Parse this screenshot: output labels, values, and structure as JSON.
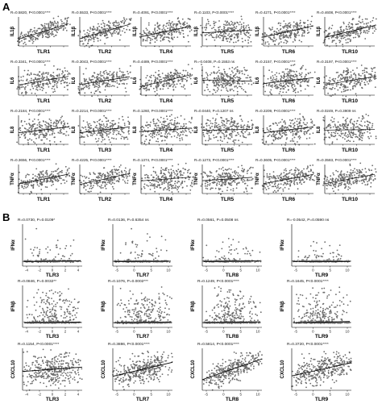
{
  "panels": [
    {
      "letter": "A",
      "rows": [
        {
          "y_label": "IL1β",
          "cells": [
            {
              "x_label": "TLR1",
              "stat": "R=0.5820, P<0.0001****",
              "r": 0.58
            },
            {
              "x_label": "TLR2",
              "stat": "R=0.5533, P<0.0001****",
              "r": 0.55
            },
            {
              "x_label": "TLR4",
              "stat": "R=0.4091, P<0.0001****",
              "r": 0.41
            },
            {
              "x_label": "TLR5",
              "stat": "R=0.1103, P<0.0001****",
              "r": 0.11
            },
            {
              "x_label": "TLR6",
              "stat": "R=0.4271, P<0.0001****",
              "r": 0.43
            },
            {
              "x_label": "TLR10",
              "stat": "R=0.4608, P<0.0001****",
              "r": 0.46
            }
          ]
        },
        {
          "y_label": "IL6",
          "cells": [
            {
              "x_label": "TLR1",
              "stat": "R=0.3341, P<0.0001****",
              "r": 0.33
            },
            {
              "x_label": "TLR2",
              "stat": "R=0.3043, P<0.0001****",
              "r": 0.3
            },
            {
              "x_label": "TLR4",
              "stat": "R=0.4489, P<0.0001****",
              "r": 0.45
            },
            {
              "x_label": "TLR5",
              "stat": "R=-0.0408, P=0.1553 ns",
              "r": -0.04
            },
            {
              "x_label": "TLR6",
              "stat": "R=0.2157, P<0.0001****",
              "r": 0.22
            },
            {
              "x_label": "TLR10",
              "stat": "R=0.3197, P<0.0001****",
              "r": 0.32
            }
          ]
        },
        {
          "y_label": "IL8",
          "cells": [
            {
              "x_label": "TLR1",
              "stat": "R=0.2184, P<0.0001****",
              "r": 0.22
            },
            {
              "x_label": "TLR3",
              "stat": "R=0.2214, P<0.0001****",
              "r": 0.22
            },
            {
              "x_label": "TLR4",
              "stat": "R=0.1260, P<0.0001****",
              "r": 0.13
            },
            {
              "x_label": "TLR5",
              "stat": "R=0.0440, P=0.1207 ns",
              "r": 0.04
            },
            {
              "x_label": "TLR6",
              "stat": "R=0.2209, P<0.0001****",
              "r": 0.22
            },
            {
              "x_label": "TLR10",
              "stat": "R=0.0249, P=0.3909 ns",
              "r": 0.02
            }
          ]
        },
        {
          "y_label": "TNFα",
          "cells": [
            {
              "x_label": "TLR1",
              "stat": "R=0.3656, P<0.0001****",
              "r": 0.37
            },
            {
              "x_label": "TLR2",
              "stat": "R=0.4225, P<0.0001****",
              "r": 0.42
            },
            {
              "x_label": "TLR4",
              "stat": "R=0.1374, P<0.0001****",
              "r": 0.14
            },
            {
              "x_label": "TLR5",
              "stat": "R=0.1273, P<0.0001****",
              "r": 0.13
            },
            {
              "x_label": "TLR6",
              "stat": "R=0.3605, P<0.0001****",
              "r": 0.36
            },
            {
              "x_label": "TLR10",
              "stat": "R=0.3583, P<0.0001****",
              "r": 0.36
            }
          ]
        }
      ]
    },
    {
      "letter": "B",
      "rows": [
        {
          "y_label": "IFNα",
          "cells": [
            {
              "x_label": "TLR3",
              "stat": "R=0.0730, P=0.0109*",
              "r": 0.07,
              "x_ticks": [
                "-4",
                "-2",
                "0",
                "2",
                "4"
              ]
            },
            {
              "x_label": "TLR7",
              "stat": "R=0.0136, P=0.6354 ns",
              "r": 0.01,
              "x_ticks": [
                "-5",
                "0",
                "5",
                "10"
              ]
            },
            {
              "x_label": "TLR8",
              "stat": "R=0.0561, P=0.0508 ns",
              "r": 0.06,
              "x_ticks": [
                "-5",
                "0",
                "5",
                "10"
              ]
            },
            {
              "x_label": "TLR9",
              "stat": "R=-0.0542, P=0.0590 ns",
              "r": -0.05,
              "x_ticks": [
                "-5",
                "0",
                "5",
                "10"
              ]
            }
          ]
        },
        {
          "y_label": "IFNβ",
          "cells": [
            {
              "x_label": "TLR3",
              "stat": "R=0.0846, P=0.0032**",
              "r": 0.08,
              "x_ticks": [
                "-4",
                "-2",
                "0",
                "2",
                "4"
              ]
            },
            {
              "x_label": "TLR7",
              "stat": "R=0.1076, P=0.0002***",
              "r": 0.11,
              "x_ticks": [
                "-5",
                "0",
                "5",
                "10"
              ]
            },
            {
              "x_label": "TLR8",
              "stat": "R=0.1249, P<0.0001****",
              "r": 0.12,
              "x_ticks": [
                "-5",
                "0",
                "5",
                "10"
              ]
            },
            {
              "x_label": "TLR9",
              "stat": "R=0.1645, P<0.0001****",
              "r": 0.16,
              "x_ticks": [
                "-5",
                "0",
                "5",
                "10"
              ]
            }
          ]
        },
        {
          "y_label": "CXCL10",
          "cells": [
            {
              "x_label": "TLR3",
              "stat": "R=0.1154, P<0.0001****",
              "r": 0.12,
              "x_ticks": [
                "-4",
                "-2",
                "0",
                "2",
                "4"
              ]
            },
            {
              "x_label": "TLR7",
              "stat": "R=0.3886, P<0.0001****",
              "r": 0.39,
              "x_ticks": [
                "-5",
                "0",
                "5",
                "10"
              ]
            },
            {
              "x_label": "TLR8",
              "stat": "R=0.5814, P<0.0001****",
              "r": 0.58,
              "x_ticks": [
                "-5",
                "0",
                "5",
                "10"
              ]
            },
            {
              "x_label": "TLR9",
              "stat": "R=0.3720, P<0.0001****",
              "r": 0.37,
              "x_ticks": [
                "-5",
                "0",
                "5",
                "10"
              ]
            }
          ]
        }
      ]
    }
  ],
  "chart_data": {
    "type": "scatter",
    "grid": false,
    "description_note": "",
    "panelA": [
      {
        "y": "IL1β",
        "pairs": [
          [
            "TLR1",
            0.582
          ],
          [
            "TLR2",
            0.5533
          ],
          [
            "TLR4",
            0.4091
          ],
          [
            "TLR5",
            0.1103
          ],
          [
            "TLR6",
            0.4271
          ],
          [
            "TLR10",
            0.4608
          ]
        ]
      },
      {
        "y": "IL6",
        "pairs": [
          [
            "TLR1",
            0.3341
          ],
          [
            "TLR2",
            0.3043
          ],
          [
            "TLR4",
            0.4489
          ],
          [
            "TLR5",
            -0.0408
          ],
          [
            "TLR6",
            0.2157
          ],
          [
            "TLR10",
            0.3197
          ]
        ]
      },
      {
        "y": "IL8",
        "pairs": [
          [
            "TLR1",
            0.2184
          ],
          [
            "TLR3",
            0.2214
          ],
          [
            "TLR4",
            0.126
          ],
          [
            "TLR5",
            0.044
          ],
          [
            "TLR6",
            0.2209
          ],
          [
            "TLR10",
            0.0249
          ]
        ]
      },
      {
        "y": "TNFα",
        "pairs": [
          [
            "TLR1",
            0.3656
          ],
          [
            "TLR2",
            0.4225
          ],
          [
            "TLR4",
            0.1374
          ],
          [
            "TLR5",
            0.1273
          ],
          [
            "TLR6",
            0.3605
          ],
          [
            "TLR10",
            0.3583
          ]
        ]
      }
    ],
    "panelB": [
      {
        "y": "IFNα",
        "pairs": [
          [
            "TLR3",
            0.073
          ],
          [
            "TLR7",
            0.0136
          ],
          [
            "TLR8",
            0.0561
          ],
          [
            "TLR9",
            -0.0542
          ]
        ]
      },
      {
        "y": "IFNβ",
        "pairs": [
          [
            "TLR3",
            0.0846
          ],
          [
            "TLR7",
            0.1076
          ],
          [
            "TLR8",
            0.1249
          ],
          [
            "TLR9",
            0.1645
          ]
        ]
      },
      {
        "y": "CXCL10",
        "pairs": [
          [
            "TLR3",
            0.1154
          ],
          [
            "TLR7",
            0.3886
          ],
          [
            "TLR8",
            0.5814
          ],
          [
            "TLR9",
            0.372
          ]
        ]
      }
    ]
  }
}
